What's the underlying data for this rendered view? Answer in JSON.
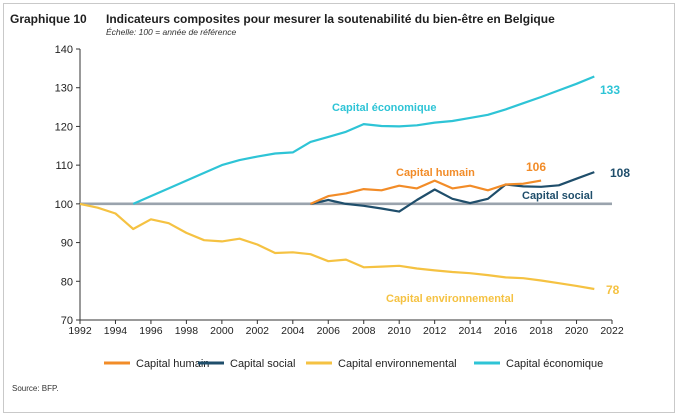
{
  "header": {
    "graphique": "Graphique 10",
    "title": "Indicateurs composites pour mesurer la soutenabilité du bien-être en Belgique",
    "subtitle": "Échelle: 100 = année de référence"
  },
  "source": "Source: BFP.",
  "colors": {
    "humain": "#f28c28",
    "social": "#1f4e6b",
    "environnemental": "#f5c242",
    "economique": "#2ec4d6",
    "reference": "#9aa3ad"
  },
  "chart_data": {
    "type": "line",
    "title": "Indicateurs composites pour mesurer la soutenabilité du bien-être en Belgique",
    "subtitle": "Échelle: 100 = année de référence",
    "xlabel": "",
    "ylabel": "",
    "xlim": [
      1992,
      2022
    ],
    "ylim": [
      70,
      140
    ],
    "xticks": [
      1992,
      1994,
      1996,
      1998,
      2000,
      2002,
      2004,
      2006,
      2008,
      2010,
      2012,
      2014,
      2016,
      2018,
      2020,
      2022
    ],
    "yticks": [
      70,
      80,
      90,
      100,
      110,
      120,
      130,
      140
    ],
    "reference_line": 100,
    "grid": false,
    "legend": "bottom",
    "series": [
      {
        "key": "humain",
        "name": "Capital humain",
        "label": "Capital humain",
        "end_label": "106",
        "x": [
          2005,
          2006,
          2007,
          2008,
          2009,
          2010,
          2011,
          2012,
          2013,
          2014,
          2015,
          2016,
          2017,
          2018
        ],
        "values": [
          100,
          102,
          102.7,
          103.8,
          103.5,
          104.7,
          104,
          106,
          104,
          104.7,
          103.5,
          105,
          105.2,
          106
        ]
      },
      {
        "key": "social",
        "name": "Capital social",
        "label": "Capital social",
        "end_label": "108",
        "x": [
          2005,
          2006,
          2007,
          2008,
          2009,
          2010,
          2011,
          2012,
          2013,
          2014,
          2015,
          2016,
          2017,
          2018,
          2019,
          2020,
          2021
        ],
        "values": [
          100,
          101,
          100,
          99.5,
          98.8,
          98,
          101,
          103.7,
          101.3,
          100.2,
          101.3,
          105,
          104.5,
          104.4,
          104.8,
          106.5,
          108.2
        ]
      },
      {
        "key": "environnemental",
        "name": "Capital environnemental",
        "label": "Capital environnemental",
        "end_label": "78",
        "x": [
          1992,
          1993,
          1994,
          1995,
          1996,
          1997,
          1998,
          1999,
          2000,
          2001,
          2002,
          2003,
          2004,
          2005,
          2006,
          2007,
          2008,
          2009,
          2010,
          2011,
          2012,
          2013,
          2014,
          2015,
          2016,
          2017,
          2018,
          2019,
          2020,
          2021
        ],
        "values": [
          100,
          99,
          97.5,
          93.5,
          96,
          95,
          92.5,
          90.6,
          90.3,
          91,
          89.5,
          87.3,
          87.5,
          87,
          85.2,
          85.6,
          83.6,
          83.8,
          84,
          83.3,
          82.8,
          82.4,
          82.1,
          81.6,
          81,
          80.8,
          80.2,
          79.5,
          78.8,
          78
        ]
      },
      {
        "key": "economique",
        "name": "Capital économique",
        "label": "Capital économique",
        "end_label": "133",
        "x": [
          1995,
          1996,
          1997,
          1998,
          1999,
          2000,
          2001,
          2002,
          2003,
          2004,
          2005,
          2006,
          2007,
          2008,
          2009,
          2010,
          2011,
          2012,
          2013,
          2014,
          2015,
          2016,
          2017,
          2018,
          2019,
          2020,
          2021
        ],
        "values": [
          100,
          102,
          104,
          106,
          108,
          110,
          111.3,
          112.2,
          113,
          113.3,
          116,
          117.3,
          118.6,
          120.6,
          120.1,
          120,
          120.3,
          121,
          121.4,
          122.2,
          123,
          124.4,
          126,
          127.6,
          129.3,
          131,
          132.9
        ]
      }
    ],
    "legend_entries": [
      "Capital humain",
      "Capital social",
      "Capital environnemental",
      "Capital économique"
    ]
  }
}
